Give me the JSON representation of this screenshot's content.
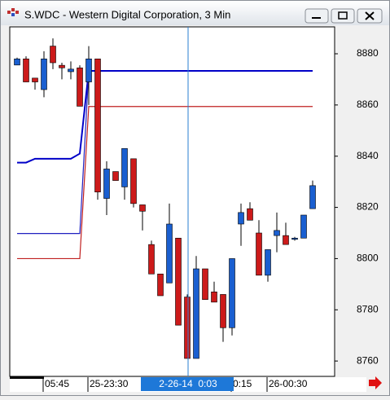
{
  "window": {
    "title": "S.WDC - Western Digital Corporation, 3 Min"
  },
  "chart_data": {
    "type": "candlestick",
    "categories": [
      null,
      null,
      null,
      "05:45",
      null,
      null,
      null,
      null,
      "25-23:30",
      null,
      null,
      null,
      null,
      null,
      null,
      null,
      null,
      null,
      null,
      null,
      null,
      null,
      null,
      null,
      "0:15",
      null,
      null,
      null,
      "26-00:30",
      null,
      null,
      null,
      null,
      null
    ],
    "open": [
      8875.6,
      8878,
      8870.5,
      8866,
      8883,
      8875.5,
      8873,
      8874.5,
      8869,
      8878,
      8823.5,
      8834,
      8828,
      8839,
      8821,
      8805.5,
      8794,
      8790.5,
      8808,
      8785,
      8761,
      8796,
      8787,
      8786,
      8773,
      8813.5,
      8819.5,
      8810,
      8793.5,
      8809,
      8809,
      8807.5,
      8808,
      8819.5
    ],
    "high": [
      8878.5,
      8879,
      8870.5,
      8881,
      8886,
      8876.5,
      8877,
      8875.5,
      8883,
      8878,
      8838,
      8834,
      8843,
      8839,
      8821,
      8807,
      8794,
      8821.5,
      8808,
      8786,
      8801,
      8796,
      8791,
      8786,
      8800,
      8821.5,
      8822,
      8815,
      8803.5,
      8818,
      8814,
      8808.5,
      8817,
      8830.5
    ],
    "low": [
      8875.6,
      8869,
      8866,
      8863,
      8874,
      8870,
      8870,
      8859.5,
      8860,
      8823,
      8817,
      8830.5,
      8823,
      8820,
      8811,
      8794,
      8785.5,
      8790.5,
      8774,
      8761,
      8761,
      8784,
      8783,
      8767.5,
      8770,
      8805,
      8815,
      8793.5,
      8791,
      8802.5,
      8805.5,
      8807,
      8808,
      8819.5
    ],
    "close": [
      8878,
      8869,
      8869,
      8878,
      8876.5,
      8874.5,
      8874,
      8859.5,
      8878,
      8826,
      8835,
      8830.5,
      8843,
      8821.5,
      8818.5,
      8794,
      8785.5,
      8813.5,
      8774,
      8761,
      8796,
      8784,
      8783,
      8773,
      8800,
      8818,
      8815,
      8793.5,
      8803.5,
      8811,
      8805.5,
      8808,
      8817,
      8828.5
    ],
    "up_color": "#1a5fd0",
    "down_color": "#cc1a1a",
    "lines": [
      {
        "color": "#0000c8",
        "values": [
          8837.5,
          8837.5,
          8839,
          8839,
          8839,
          8839,
          8839,
          8841,
          8873.3,
          8873.3,
          8873.3,
          8873.3,
          8873.3,
          8873.3,
          8873.3,
          8873.3,
          8873.3,
          8873.3,
          8873.3,
          8873.3,
          8873.3,
          8873.3,
          8873.3,
          8873.3,
          8873.3,
          8873.3,
          8873.3,
          8873.3,
          8873.3,
          8873.3,
          8873.3,
          8873.3,
          8873.3,
          8873.3
        ]
      },
      {
        "color": "#2020c0",
        "values": [
          8809.8,
          8809.8,
          8809.8,
          8809.8,
          8809.8,
          8809.8,
          8809.8,
          8809.8,
          8873.3,
          null,
          null,
          null,
          null,
          null,
          null,
          null,
          null,
          null,
          null,
          null,
          null,
          null,
          null,
          null,
          null,
          null,
          null,
          null,
          null,
          null,
          null,
          null,
          null,
          null
        ]
      },
      {
        "color": "#c02020",
        "values": [
          8800,
          8800,
          8800,
          8800,
          8800,
          8800,
          8800,
          8800,
          8859.4,
          8859.4,
          8859.4,
          8859.4,
          8859.4,
          8859.4,
          8859.4,
          8859.4,
          8859.4,
          8859.4,
          8859.4,
          8859.4,
          8859.4,
          8859.4,
          8859.4,
          8859.4,
          8859.4,
          8859.4,
          8859.4,
          8859.4,
          8859.4,
          8859.4,
          8859.4,
          8859.4,
          8859.4,
          8859.4
        ]
      }
    ],
    "cursor": {
      "index": 19,
      "label": "2-26-14  0:03"
    },
    "ylim": [
      8754,
      8890.5
    ],
    "yticks": [
      8760,
      8780,
      8800,
      8820,
      8840,
      8860,
      8880
    ]
  }
}
